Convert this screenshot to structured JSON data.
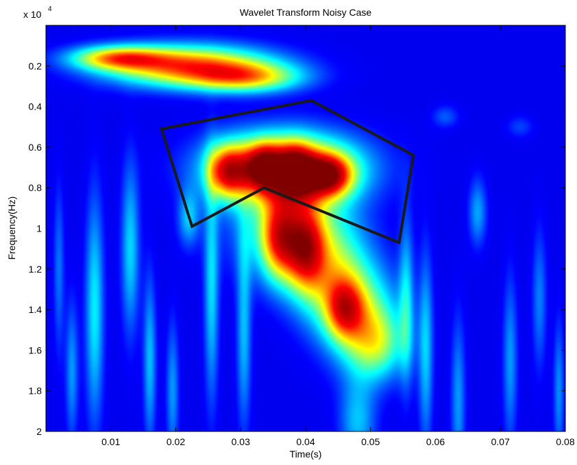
{
  "chart_data": {
    "type": "heatmap",
    "title": "Wavelet Transform Noisy Case",
    "xlabel": "Time(s)",
    "ylabel": "Frequency(Hz)",
    "y_scale_label": "x 10",
    "y_scale_exponent": "4",
    "xlim": [
      0.0,
      0.08
    ],
    "ylim": [
      0.0,
      2.0
    ],
    "y_inverted": true,
    "x_ticks": [
      0.01,
      0.02,
      0.03,
      0.04,
      0.05,
      0.06,
      0.07,
      0.08
    ],
    "x_tick_labels": [
      "0.01",
      "0.02",
      "0.03",
      "0.04",
      "0.05",
      "0.06",
      "0.07",
      "0.08"
    ],
    "y_ticks": [
      0.2,
      0.4,
      0.6,
      0.8,
      1.0,
      1.2,
      1.4,
      1.6,
      1.8,
      2.0
    ],
    "y_tick_labels": [
      "0.2",
      "0.4",
      "0.6",
      "0.8",
      "1",
      "1.2",
      "1.4",
      "1.6",
      "1.8",
      "2"
    ],
    "colormap": [
      "#00008f",
      "#0000ff",
      "#00ffff",
      "#ffff00",
      "#ff0000",
      "#800000"
    ],
    "background_color": "#1c2f9c",
    "blobs": [
      {
        "t": 0.022,
        "f": 0.2,
        "st": 0.009,
        "sf": 0.07,
        "a": 0.55
      },
      {
        "t": 0.011,
        "f": 0.16,
        "st": 0.005,
        "sf": 0.04,
        "a": 0.4
      },
      {
        "t": 0.031,
        "f": 0.26,
        "st": 0.006,
        "sf": 0.05,
        "a": 0.35
      },
      {
        "t": 0.037,
        "f": 0.7,
        "st": 0.008,
        "sf": 0.12,
        "a": 0.55
      },
      {
        "t": 0.028,
        "f": 0.72,
        "st": 0.002,
        "sf": 0.09,
        "a": 0.45
      },
      {
        "t": 0.0335,
        "f": 0.7,
        "st": 0.002,
        "sf": 0.08,
        "a": 0.45
      },
      {
        "t": 0.0385,
        "f": 0.72,
        "st": 0.002,
        "sf": 0.09,
        "a": 0.45
      },
      {
        "t": 0.0435,
        "f": 0.74,
        "st": 0.0025,
        "sf": 0.07,
        "a": 0.5
      },
      {
        "t": 0.036,
        "f": 1.05,
        "st": 0.002,
        "sf": 0.14,
        "a": 0.4
      },
      {
        "t": 0.04,
        "f": 1.1,
        "st": 0.002,
        "sf": 0.14,
        "a": 0.42
      },
      {
        "t": 0.038,
        "f": 1.0,
        "st": 0.006,
        "sf": 0.18,
        "a": 0.3
      },
      {
        "t": 0.044,
        "f": 1.25,
        "st": 0.004,
        "sf": 0.18,
        "a": 0.3
      },
      {
        "t": 0.046,
        "f": 1.4,
        "st": 0.002,
        "sf": 0.1,
        "a": 0.35
      },
      {
        "t": 0.049,
        "f": 1.45,
        "st": 0.004,
        "sf": 0.18,
        "a": 0.28
      },
      {
        "t": 0.051,
        "f": 1.58,
        "st": 0.003,
        "sf": 0.12,
        "a": 0.22
      },
      {
        "t": 0.048,
        "f": 1.95,
        "st": 0.002,
        "sf": 0.15,
        "a": 0.18
      },
      {
        "t": 0.0075,
        "f": 1.4,
        "st": 0.001,
        "sf": 0.4,
        "a": 0.22
      },
      {
        "t": 0.013,
        "f": 1.1,
        "st": 0.001,
        "sf": 0.3,
        "a": 0.2
      },
      {
        "t": 0.004,
        "f": 1.7,
        "st": 0.0007,
        "sf": 0.25,
        "a": 0.15
      },
      {
        "t": 0.016,
        "f": 1.65,
        "st": 0.0007,
        "sf": 0.3,
        "a": 0.18
      },
      {
        "t": 0.0195,
        "f": 1.8,
        "st": 0.0007,
        "sf": 0.25,
        "a": 0.15
      },
      {
        "t": 0.0255,
        "f": 1.3,
        "st": 0.0008,
        "sf": 0.4,
        "a": 0.2
      },
      {
        "t": 0.0305,
        "f": 1.5,
        "st": 0.0008,
        "sf": 0.35,
        "a": 0.18
      },
      {
        "t": 0.0555,
        "f": 1.35,
        "st": 0.0008,
        "sf": 0.3,
        "a": 0.18
      },
      {
        "t": 0.0585,
        "f": 1.6,
        "st": 0.0008,
        "sf": 0.35,
        "a": 0.18
      },
      {
        "t": 0.0635,
        "f": 1.85,
        "st": 0.0008,
        "sf": 0.3,
        "a": 0.15
      },
      {
        "t": 0.0665,
        "f": 0.92,
        "st": 0.001,
        "sf": 0.12,
        "a": 0.16
      },
      {
        "t": 0.0715,
        "f": 1.65,
        "st": 0.0008,
        "sf": 0.3,
        "a": 0.15
      },
      {
        "t": 0.076,
        "f": 1.35,
        "st": 0.0008,
        "sf": 0.25,
        "a": 0.13
      },
      {
        "t": 0.079,
        "f": 1.8,
        "st": 0.0006,
        "sf": 0.25,
        "a": 0.14
      },
      {
        "t": 0.0615,
        "f": 0.45,
        "st": 0.0015,
        "sf": 0.04,
        "a": 0.1
      },
      {
        "t": 0.073,
        "f": 0.5,
        "st": 0.0015,
        "sf": 0.04,
        "a": 0.08
      },
      {
        "t": 0.022,
        "f": 0.95,
        "st": 0.0012,
        "sf": 0.1,
        "a": 0.18
      },
      {
        "t": 0.002,
        "f": 1.2,
        "st": 0.0006,
        "sf": 0.3,
        "a": 0.12
      }
    ],
    "annotation_polygon": {
      "color": "#1a1a1a",
      "points": [
        {
          "t": 0.0178,
          "f": 0.51
        },
        {
          "t": 0.0409,
          "f": 0.37
        },
        {
          "t": 0.0566,
          "f": 0.64
        },
        {
          "t": 0.0544,
          "f": 1.07
        },
        {
          "t": 0.0336,
          "f": 0.8
        },
        {
          "t": 0.0225,
          "f": 0.99
        }
      ]
    }
  }
}
